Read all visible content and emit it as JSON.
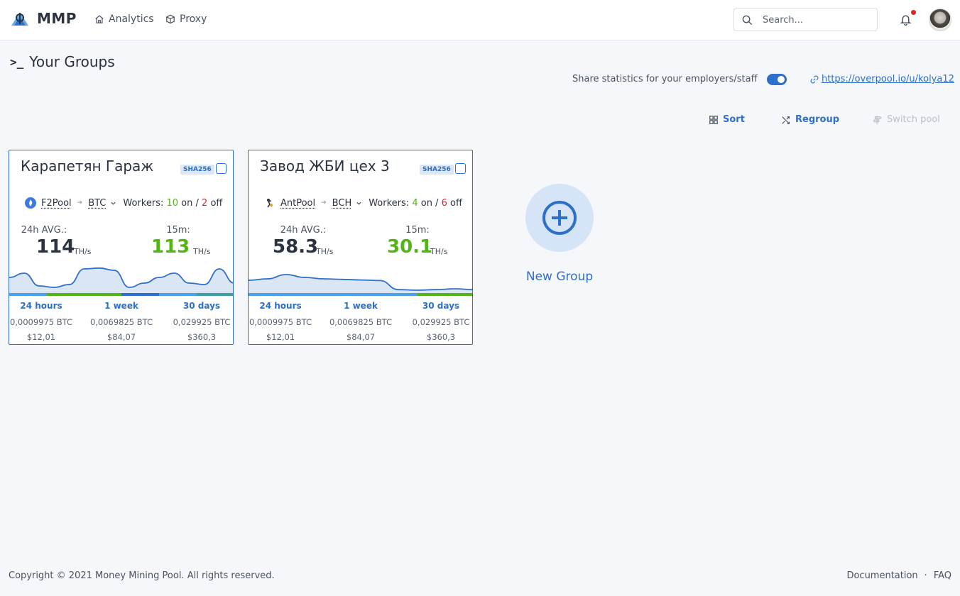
{
  "header": {
    "brand": "MMP",
    "nav": [
      {
        "label": "Analytics",
        "icon": "home-icon"
      },
      {
        "label": "Proxy",
        "icon": "cube-icon"
      }
    ],
    "search": {
      "placeholder": "Search...",
      "value": ""
    },
    "notifications": {
      "has_unread": true,
      "dot_color": "#e02424"
    }
  },
  "page": {
    "title": "Your Groups",
    "share": {
      "label": "Share statistics for your employers/staff",
      "enabled": true,
      "link": "https://overpool.io/u/kolya12"
    },
    "toolbar": {
      "sort": "Sort",
      "regroup": "Regroup",
      "switch_pool": "Switch pool"
    }
  },
  "groups": [
    {
      "name": "Карапетян Гараж",
      "algorithm": "SHA256",
      "pool": "F2Pool",
      "coin": "BTC",
      "workers_label": "Workers:",
      "workers_on": "10",
      "on_label": "on /",
      "workers_off": "2",
      "off_label": "off",
      "avg_label": "24h AVG.:",
      "avg_value": "114",
      "avg_unit": "TH/s",
      "recent_label": "15m:",
      "recent_value": "113",
      "recent_unit": "TH/s",
      "hashrate_series": [
        0.55,
        0.7,
        0.25,
        0.2,
        0.3,
        0.85,
        0.88,
        0.8,
        0.2,
        0.35,
        0.55,
        0.7,
        0.35,
        0.3,
        0.85,
        0.35
      ],
      "period_colors": [
        "#4aa3e8",
        "#52b515",
        "#52b515",
        "#2d6fc9",
        "#4aa3e8",
        "#3a9fa0"
      ],
      "periods": [
        {
          "label": "24 hours",
          "btc": "0,0009975 BTC",
          "usd": "$12,01"
        },
        {
          "label": "1 week",
          "btc": "0,0069825 BTC",
          "usd": "$84,07"
        },
        {
          "label": "30 days",
          "btc": "0,029925 BTC",
          "usd": "$360,3"
        }
      ]
    },
    {
      "name": "Завод ЖБИ цех 3",
      "algorithm": "SHA256",
      "pool": "AntPool",
      "coin": "BCH",
      "workers_label": "Workers:",
      "workers_on": "4",
      "on_label": "on /",
      "workers_off": "6",
      "off_label": "off",
      "avg_label": "24h AVG.:",
      "avg_value": "58.3",
      "avg_unit": "TH/s",
      "recent_label": "15m:",
      "recent_value": "30.1",
      "recent_unit": "TH/s",
      "hashrate_series": [
        0.45,
        0.5,
        0.65,
        0.55,
        0.5,
        0.48,
        0.46,
        0.44,
        0.12,
        0.1,
        0.12,
        0.15,
        0.12
      ],
      "period_colors": [
        "#4aa3e8",
        "#4aa3e8",
        "#4aa3e8",
        "#52b515"
      ],
      "periods": [
        {
          "label": "24 hours",
          "btc": "0,0009975 BTC",
          "usd": "$12,01"
        },
        {
          "label": "1 week",
          "btc": "0,0069825 BTC",
          "usd": "$84,07"
        },
        {
          "label": "30 days",
          "btc": "0,029925 BTC",
          "usd": "$360,3"
        }
      ]
    }
  ],
  "new_group": {
    "label": "New Group"
  },
  "footer": {
    "copyright": "Copyright © 2021 Money Mining Pool. All rights reserved.",
    "documentation": "Documentation",
    "separator": "·",
    "faq": "FAQ"
  },
  "colors": {
    "accent": "#2d6fc9",
    "online": "#52b515",
    "offline": "#d12c2c"
  }
}
